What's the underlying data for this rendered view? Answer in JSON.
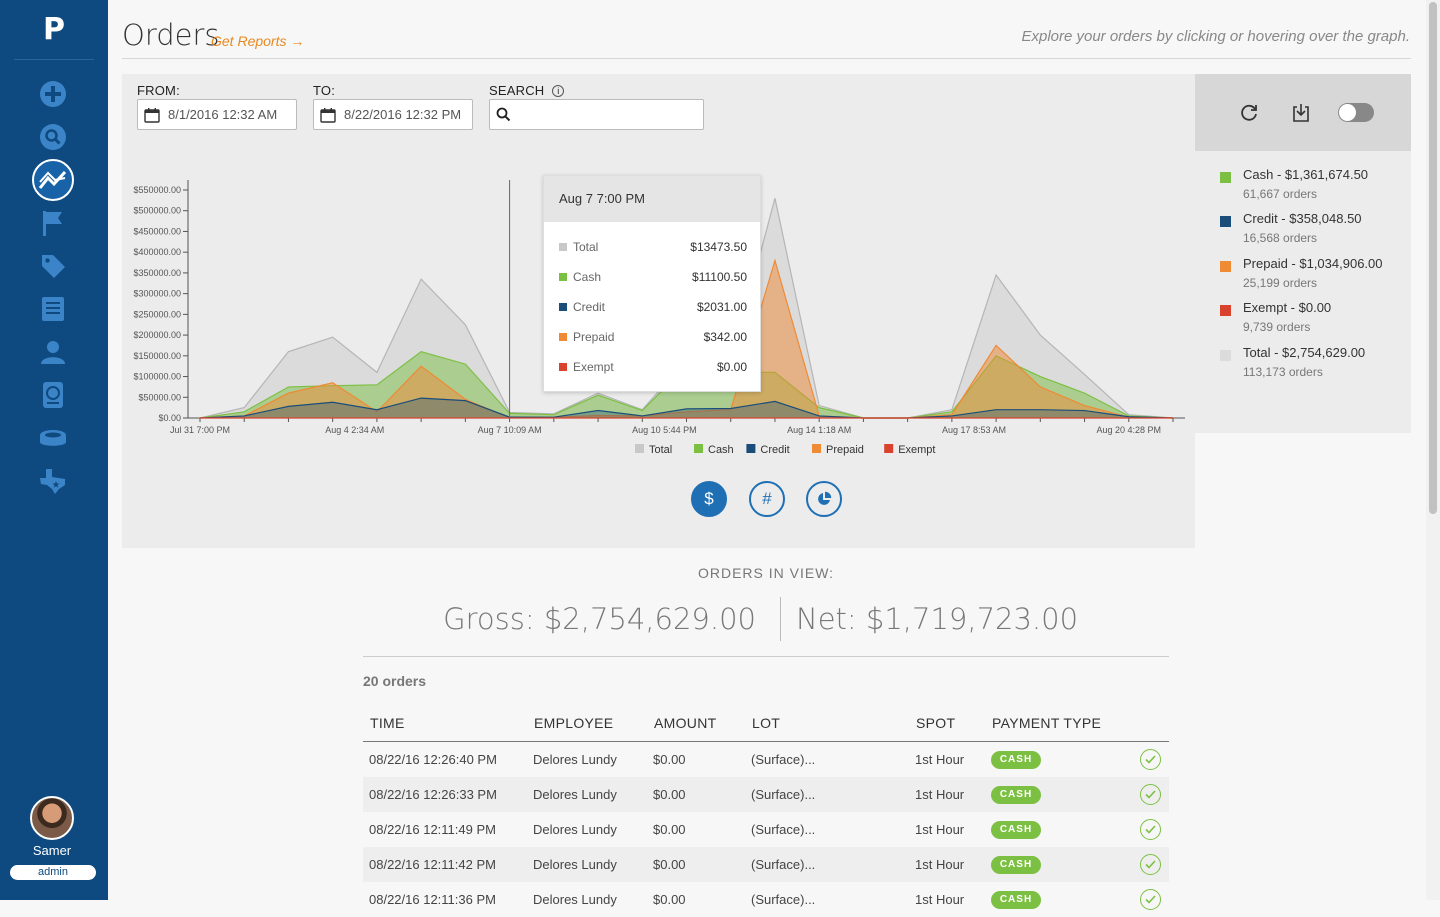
{
  "app": {
    "logo": "P"
  },
  "sidebar": {
    "items": [
      {
        "icon": "plus-circle-icon",
        "active": false
      },
      {
        "icon": "search-icon",
        "active": false
      },
      {
        "icon": "trend-line-icon",
        "active": true
      },
      {
        "icon": "flag-icon",
        "active": false
      },
      {
        "icon": "tag-icon",
        "active": false
      },
      {
        "icon": "document-icon",
        "active": false
      },
      {
        "icon": "user-icon",
        "active": false
      },
      {
        "icon": "parking-permit-icon",
        "active": false
      },
      {
        "icon": "stadium-icon",
        "active": false
      },
      {
        "icon": "texas-icon",
        "active": false
      }
    ],
    "user": {
      "name": "Samer",
      "role": "admin"
    }
  },
  "header": {
    "title": "Orders",
    "reports_link": "Get Reports →",
    "hint": "Explore your orders by clicking or hovering over the graph."
  },
  "filters": {
    "from_label": "FROM:",
    "from_value": "8/1/2016 12:32 AM",
    "to_label": "TO:",
    "to_value": "8/22/2016 12:32 PM",
    "search_label": "SEARCH",
    "search_value": ""
  },
  "controls": {
    "refresh": "refresh-icon",
    "download": "download-icon",
    "toggle_on": false
  },
  "colors": {
    "total": "#c8c8c8",
    "cash": "#7cc043",
    "credit": "#1b4d7a",
    "prepaid": "#ef8a35",
    "exempt": "#d9432e",
    "accent": "#1f6fb5",
    "sidebar": "#0e4a80"
  },
  "chart_data": {
    "type": "area",
    "ylim": [
      0,
      550000
    ],
    "y_ticks": [
      "$0.00",
      "$50000.00",
      "$100000.00",
      "$150000.00",
      "$200000.00",
      "$250000.00",
      "$300000.00",
      "$350000.00",
      "$400000.00",
      "$450000.00",
      "$500000.00",
      "$550000.00"
    ],
    "x_tick_labels": [
      "Jul 31 7:00 PM",
      "Aug 4 2:34 AM",
      "Aug 7 10:09 AM",
      "Aug 10 5:44 PM",
      "Aug 14 1:18 AM",
      "Aug 17 8:53 AM",
      "Aug 20 4:28 PM"
    ],
    "x": [
      0,
      1,
      2,
      3,
      4,
      5,
      6,
      7,
      8,
      9,
      10,
      11,
      12,
      13,
      14,
      15,
      16,
      17,
      18,
      19,
      20,
      21,
      22
    ],
    "series": [
      {
        "name": "Total",
        "values": [
          0,
          25000,
          160000,
          195000,
          110000,
          335000,
          225000,
          13473.5,
          10000,
          60000,
          20000,
          140000,
          130000,
          530000,
          30000,
          0,
          0,
          20000,
          345000,
          200000,
          105000,
          8000,
          0
        ]
      },
      {
        "name": "Cash",
        "values": [
          0,
          15000,
          75000,
          78000,
          80000,
          160000,
          130000,
          11100.5,
          8000,
          55000,
          18000,
          125000,
          110000,
          110000,
          25000,
          0,
          0,
          15000,
          150000,
          100000,
          60000,
          5000,
          0
        ]
      },
      {
        "name": "Credit",
        "values": [
          0,
          5000,
          28000,
          38000,
          20000,
          48000,
          42000,
          2031,
          2000,
          18000,
          5000,
          22000,
          23000,
          40000,
          5000,
          0,
          0,
          5000,
          20000,
          20000,
          18000,
          3000,
          0
        ]
      },
      {
        "name": "Prepaid",
        "values": [
          0,
          5000,
          60000,
          85000,
          15000,
          125000,
          45000,
          342,
          2000,
          6000,
          5000,
          15000,
          20000,
          380000,
          5000,
          0,
          0,
          8000,
          175000,
          75000,
          30000,
          2000,
          0
        ]
      },
      {
        "name": "Exempt",
        "values": [
          0,
          0,
          0,
          0,
          0,
          0,
          0,
          0,
          0,
          0,
          0,
          0,
          0,
          0,
          0,
          0,
          0,
          0,
          0,
          0,
          0,
          0,
          0
        ]
      }
    ],
    "legend": [
      "Total",
      "Cash",
      "Credit",
      "Prepaid",
      "Exempt"
    ],
    "hover_index": 7
  },
  "tooltip": {
    "title": "Aug 7 7:00 PM",
    "rows": [
      {
        "name": "Total",
        "value": "$13473.50"
      },
      {
        "name": "Cash",
        "value": "$11100.50"
      },
      {
        "name": "Credit",
        "value": "$2031.00"
      },
      {
        "name": "Prepaid",
        "value": "$342.00"
      },
      {
        "name": "Exempt",
        "value": "$0.00"
      }
    ]
  },
  "mode_buttons": {
    "dollar": "$",
    "count": "#",
    "pie": "pie-chart-icon",
    "active": "dollar"
  },
  "breakdown": [
    {
      "label": "Cash - $1,361,674.50",
      "sub": "61,667 orders"
    },
    {
      "label": "Credit - $358,048.50",
      "sub": "16,568 orders"
    },
    {
      "label": "Prepaid - $1,034,906.00",
      "sub": "25,199 orders"
    },
    {
      "label": "Exempt - $0.00",
      "sub": "9,739 orders"
    },
    {
      "label": "Total - $2,754,629.00",
      "sub": "113,173 orders"
    }
  ],
  "summary": {
    "heading": "ORDERS IN VIEW:",
    "gross": "Gross: $2,754,629.00",
    "net": "Net: $1,719,723.00",
    "count": "20 orders"
  },
  "table": {
    "headers": [
      "TIME",
      "EMPLOYEE",
      "AMOUNT",
      "LOT",
      "SPOT",
      "PAYMENT TYPE"
    ],
    "rows": [
      {
        "time": "08/22/16 12:26:40 PM",
        "employee": "Delores Lundy",
        "amount": "$0.00",
        "lot": "(Surface)...",
        "spot": "1st Hour",
        "payment": "CASH"
      },
      {
        "time": "08/22/16 12:26:33 PM",
        "employee": "Delores Lundy",
        "amount": "$0.00",
        "lot": "(Surface)...",
        "spot": "1st Hour",
        "payment": "CASH"
      },
      {
        "time": "08/22/16 12:11:49 PM",
        "employee": "Delores Lundy",
        "amount": "$0.00",
        "lot": "(Surface)...",
        "spot": "1st Hour",
        "payment": "CASH"
      },
      {
        "time": "08/22/16 12:11:42 PM",
        "employee": "Delores Lundy",
        "amount": "$0.00",
        "lot": "(Surface)...",
        "spot": "1st Hour",
        "payment": "CASH"
      },
      {
        "time": "08/22/16 12:11:36 PM",
        "employee": "Delores Lundy",
        "amount": "$0.00",
        "lot": "(Surface)...",
        "spot": "1st Hour",
        "payment": "CASH"
      }
    ]
  }
}
